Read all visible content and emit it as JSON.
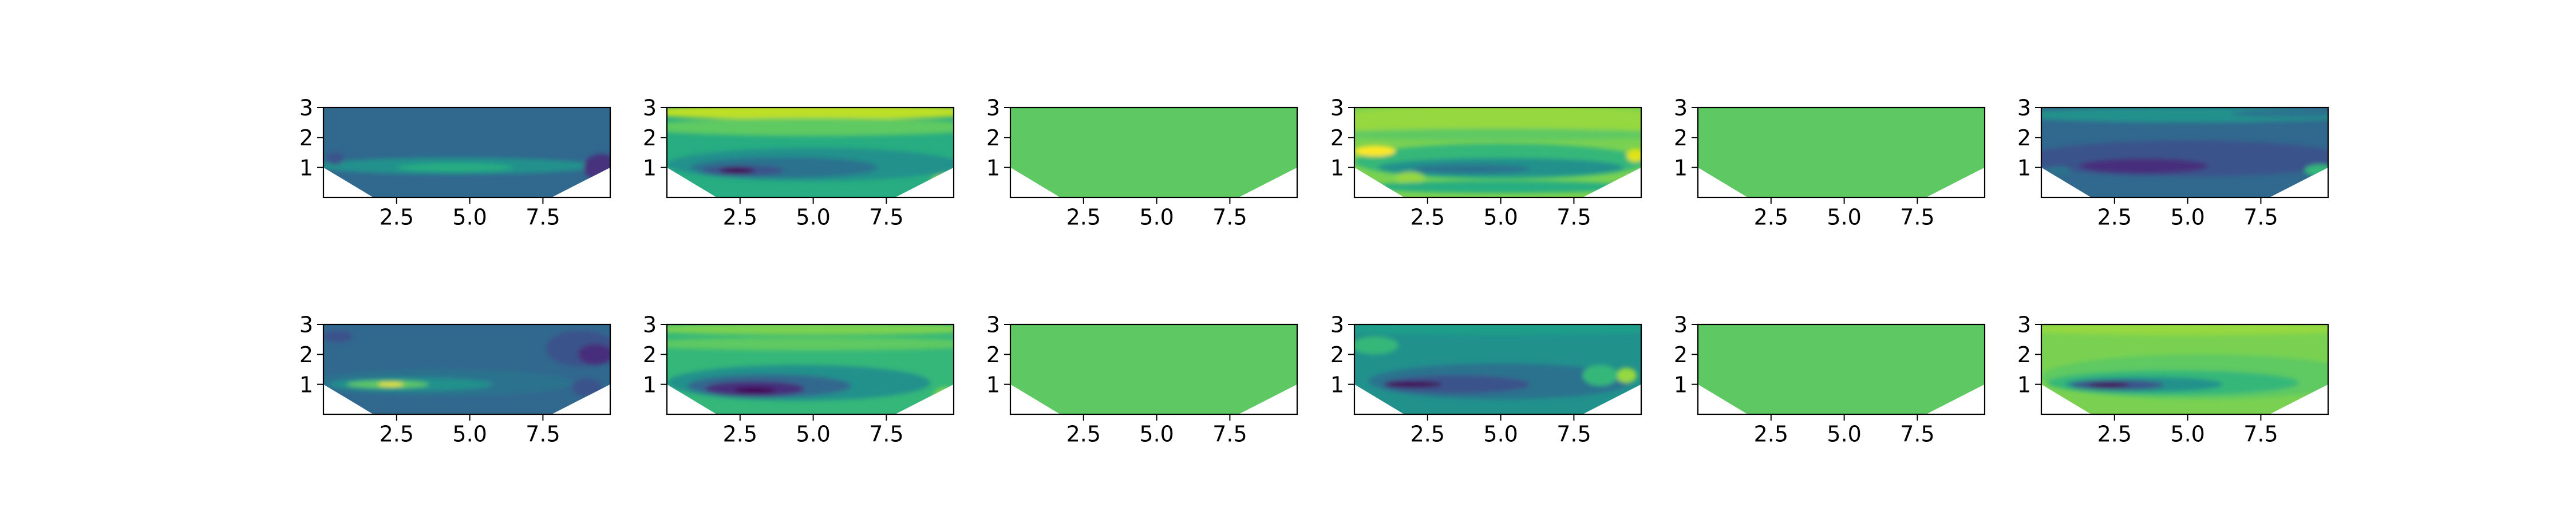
{
  "chart_data": {
    "type": "contour-grid",
    "layout": {
      "rows": 2,
      "cols": 6
    },
    "xlim": [
      0,
      9.8
    ],
    "ylim": [
      0,
      3
    ],
    "xticks": [
      "2.5",
      "5.0",
      "7.5"
    ],
    "xtick_values": [
      2.5,
      5.0,
      7.5
    ],
    "yticks": [
      "1",
      "2",
      "3"
    ],
    "ytick_values": [
      1,
      2,
      3
    ],
    "mask_cutout": {
      "left_edge_y": 1.0,
      "bottom_left_x": 1.7,
      "bottom_right_x": 7.8,
      "right_edge_y": 1.0
    },
    "colormap": "viridis",
    "panels": [
      {
        "name": "row1-col1",
        "base_color": "#31688e",
        "blobs": [
          {
            "cx": 4.5,
            "cy": 1.05,
            "rx": 4.8,
            "ry": 0.28,
            "color": "#21918c"
          },
          {
            "cx": 4.5,
            "cy": 1.0,
            "rx": 2.0,
            "ry": 0.14,
            "color": "#27ad81"
          },
          {
            "cx": 9.5,
            "cy": 1.0,
            "rx": 0.6,
            "ry": 0.45,
            "color": "#46327e"
          },
          {
            "cx": 0.4,
            "cy": 1.3,
            "rx": 0.3,
            "ry": 0.2,
            "color": "#3b528b"
          }
        ]
      },
      {
        "name": "row1-col2",
        "base_color": "#27ad81",
        "blobs": [
          {
            "cx": 5.0,
            "cy": 2.85,
            "rx": 6.0,
            "ry": 0.25,
            "color": "#bddf26"
          },
          {
            "cx": 5.0,
            "cy": 2.35,
            "rx": 6.0,
            "ry": 0.3,
            "color": "#5ec962"
          },
          {
            "cx": 5.0,
            "cy": 1.1,
            "rx": 5.0,
            "ry": 0.55,
            "color": "#21918c"
          },
          {
            "cx": 4.0,
            "cy": 1.0,
            "rx": 3.2,
            "ry": 0.35,
            "color": "#2c728e"
          },
          {
            "cx": 2.6,
            "cy": 0.9,
            "rx": 1.4,
            "ry": 0.18,
            "color": "#3b528b"
          },
          {
            "cx": 2.4,
            "cy": 0.9,
            "rx": 0.6,
            "ry": 0.1,
            "color": "#440154"
          },
          {
            "cx": 9.5,
            "cy": 0.45,
            "rx": 0.5,
            "ry": 0.3,
            "color": "#bddf26"
          }
        ]
      },
      {
        "name": "row1-col3",
        "base_color": "#5ec962",
        "blobs": []
      },
      {
        "name": "row1-col4",
        "base_color": "#7ad151",
        "blobs": [
          {
            "cx": 5.0,
            "cy": 2.55,
            "rx": 6.0,
            "ry": 0.55,
            "color": "#95d840"
          },
          {
            "cx": 5.0,
            "cy": 2.1,
            "rx": 6.0,
            "ry": 0.2,
            "color": "#5ec962"
          },
          {
            "cx": 5.0,
            "cy": 1.2,
            "rx": 5.0,
            "ry": 0.6,
            "color": "#35b779"
          },
          {
            "cx": 5.0,
            "cy": 1.0,
            "rx": 4.2,
            "ry": 0.32,
            "color": "#21918c"
          },
          {
            "cx": 4.0,
            "cy": 0.95,
            "rx": 2.0,
            "ry": 0.15,
            "color": "#2c728e"
          },
          {
            "cx": 0.7,
            "cy": 1.55,
            "rx": 0.7,
            "ry": 0.18,
            "color": "#fde725"
          },
          {
            "cx": 1.9,
            "cy": 0.65,
            "rx": 0.5,
            "ry": 0.2,
            "color": "#95d840"
          },
          {
            "cx": 9.6,
            "cy": 1.4,
            "rx": 0.3,
            "ry": 0.22,
            "color": "#dfe318"
          },
          {
            "cx": 5.0,
            "cy": 0.35,
            "rx": 4.5,
            "ry": 0.2,
            "color": "#27ad81"
          }
        ]
      },
      {
        "name": "row1-col5",
        "base_color": "#5ec962",
        "blobs": []
      },
      {
        "name": "row1-col6",
        "base_color": "#31688e",
        "blobs": [
          {
            "cx": 5.0,
            "cy": 2.75,
            "rx": 6.0,
            "ry": 0.25,
            "color": "#21918c"
          },
          {
            "cx": 8.5,
            "cy": 2.8,
            "rx": 2.0,
            "ry": 0.12,
            "color": "#2c728e"
          },
          {
            "cx": 5.0,
            "cy": 1.3,
            "rx": 5.5,
            "ry": 0.6,
            "color": "#3b528b"
          },
          {
            "cx": 3.5,
            "cy": 1.05,
            "rx": 2.2,
            "ry": 0.25,
            "color": "#472d7b"
          },
          {
            "cx": 9.5,
            "cy": 0.9,
            "rx": 0.5,
            "ry": 0.2,
            "color": "#35b779"
          },
          {
            "cx": 0.6,
            "cy": 0.9,
            "rx": 0.4,
            "ry": 0.15,
            "color": "#2c728e"
          }
        ]
      },
      {
        "name": "row2-col1",
        "base_color": "#31688e",
        "blobs": [
          {
            "cx": 4.0,
            "cy": 1.05,
            "rx": 4.5,
            "ry": 0.45,
            "color": "#2c728e"
          },
          {
            "cx": 3.0,
            "cy": 1.0,
            "rx": 2.8,
            "ry": 0.22,
            "color": "#21918c"
          },
          {
            "cx": 2.2,
            "cy": 1.0,
            "rx": 1.4,
            "ry": 0.12,
            "color": "#5ec962"
          },
          {
            "cx": 2.3,
            "cy": 1.0,
            "rx": 0.45,
            "ry": 0.06,
            "color": "#fde725"
          },
          {
            "cx": 8.8,
            "cy": 2.2,
            "rx": 1.2,
            "ry": 0.6,
            "color": "#3b528b"
          },
          {
            "cx": 9.3,
            "cy": 2.0,
            "rx": 0.6,
            "ry": 0.35,
            "color": "#472d7b"
          },
          {
            "cx": 0.5,
            "cy": 2.6,
            "rx": 0.5,
            "ry": 0.2,
            "color": "#3b528b"
          },
          {
            "cx": 9.0,
            "cy": 0.9,
            "rx": 0.5,
            "ry": 0.3,
            "color": "#3b528b"
          }
        ]
      },
      {
        "name": "row2-col2",
        "base_color": "#35b779",
        "blobs": [
          {
            "cx": 5.0,
            "cy": 2.85,
            "rx": 6.0,
            "ry": 0.2,
            "color": "#7ad151"
          },
          {
            "cx": 5.0,
            "cy": 2.35,
            "rx": 6.0,
            "ry": 0.22,
            "color": "#5ec962"
          },
          {
            "cx": 4.5,
            "cy": 1.05,
            "rx": 4.5,
            "ry": 0.6,
            "color": "#21918c"
          },
          {
            "cx": 3.5,
            "cy": 0.95,
            "rx": 2.8,
            "ry": 0.38,
            "color": "#31688e"
          },
          {
            "cx": 3.0,
            "cy": 0.85,
            "rx": 1.7,
            "ry": 0.25,
            "color": "#472d7b"
          },
          {
            "cx": 3.0,
            "cy": 0.8,
            "rx": 0.7,
            "ry": 0.1,
            "color": "#440154"
          },
          {
            "cx": 9.5,
            "cy": 0.6,
            "rx": 0.4,
            "ry": 0.3,
            "color": "#7ad151"
          }
        ]
      },
      {
        "name": "row2-col3",
        "base_color": "#5ec962",
        "blobs": []
      },
      {
        "name": "row2-col4",
        "base_color": "#21918c",
        "blobs": [
          {
            "cx": 5.0,
            "cy": 2.85,
            "rx": 6.0,
            "ry": 0.2,
            "color": "#1f9e89"
          },
          {
            "cx": 0.7,
            "cy": 2.3,
            "rx": 0.8,
            "ry": 0.3,
            "color": "#35b779"
          },
          {
            "cx": 5.0,
            "cy": 1.1,
            "rx": 4.5,
            "ry": 0.6,
            "color": "#2c728e"
          },
          {
            "cx": 3.5,
            "cy": 1.0,
            "rx": 2.5,
            "ry": 0.3,
            "color": "#3b528b"
          },
          {
            "cx": 2.0,
            "cy": 1.0,
            "rx": 1.0,
            "ry": 0.1,
            "color": "#440154"
          },
          {
            "cx": 9.3,
            "cy": 1.3,
            "rx": 0.35,
            "ry": 0.25,
            "color": "#95d840"
          },
          {
            "cx": 8.4,
            "cy": 1.3,
            "rx": 0.6,
            "ry": 0.35,
            "color": "#35b779"
          }
        ]
      },
      {
        "name": "row2-col5",
        "base_color": "#5ec962",
        "blobs": []
      },
      {
        "name": "row2-col6",
        "base_color": "#7ad151",
        "blobs": [
          {
            "cx": 5.0,
            "cy": 2.85,
            "rx": 6.0,
            "ry": 0.2,
            "color": "#95d840"
          },
          {
            "cx": 5.5,
            "cy": 1.25,
            "rx": 5.5,
            "ry": 0.75,
            "color": "#5ec962"
          },
          {
            "cx": 4.5,
            "cy": 1.05,
            "rx": 4.3,
            "ry": 0.42,
            "color": "#35b779"
          },
          {
            "cx": 3.5,
            "cy": 1.0,
            "rx": 2.7,
            "ry": 0.25,
            "color": "#21918c"
          },
          {
            "cx": 2.6,
            "cy": 0.98,
            "rx": 1.6,
            "ry": 0.16,
            "color": "#3b528b"
          },
          {
            "cx": 2.3,
            "cy": 0.98,
            "rx": 0.7,
            "ry": 0.08,
            "color": "#440154"
          }
        ]
      }
    ]
  }
}
